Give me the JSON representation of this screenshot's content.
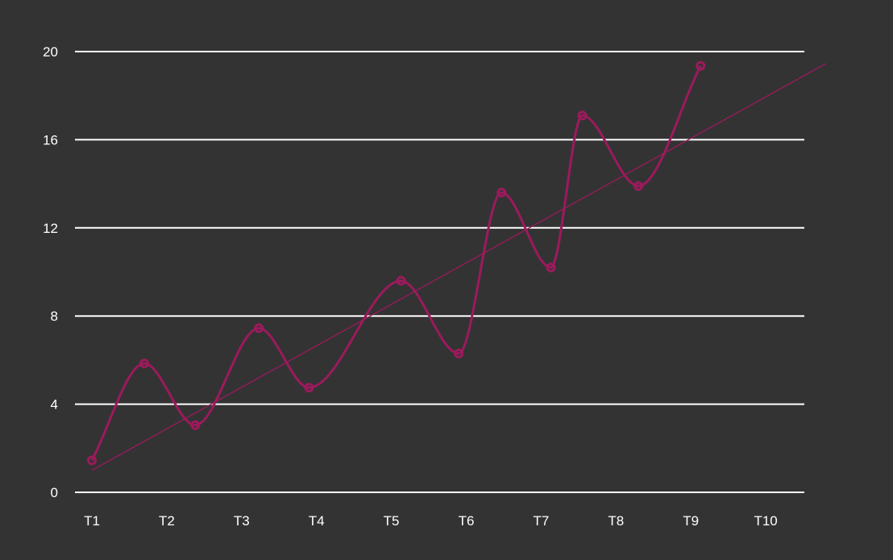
{
  "chart_data": {
    "type": "line",
    "categories": [
      "T1",
      "T2",
      "T3",
      "T4",
      "T5",
      "T6",
      "T7",
      "T8",
      "T9",
      "T10"
    ],
    "yticks": [
      "0",
      "4",
      "8",
      "12",
      "16",
      "20"
    ],
    "ylim": [
      0,
      20
    ],
    "grid": true,
    "series": [
      {
        "color": "#9c1a5c",
        "smooth": true,
        "marker": "hollow-circle",
        "points": [
          {
            "x": 1.0,
            "y": 1.45
          },
          {
            "x": 1.7,
            "y": 5.85
          },
          {
            "x": 2.38,
            "y": 3.05
          },
          {
            "x": 3.23,
            "y": 7.45
          },
          {
            "x": 3.9,
            "y": 4.75
          },
          {
            "x": 5.13,
            "y": 9.6
          },
          {
            "x": 5.9,
            "y": 6.3
          },
          {
            "x": 6.47,
            "y": 13.6
          },
          {
            "x": 7.13,
            "y": 10.2
          },
          {
            "x": 7.55,
            "y": 17.1
          },
          {
            "x": 8.3,
            "y": 13.9
          },
          {
            "x": 9.13,
            "y": 19.35
          }
        ]
      }
    ],
    "trendline": {
      "color": "#9c1a5c",
      "x": [
        1.0,
        10.8
      ],
      "y": [
        1.0,
        19.45
      ]
    }
  }
}
